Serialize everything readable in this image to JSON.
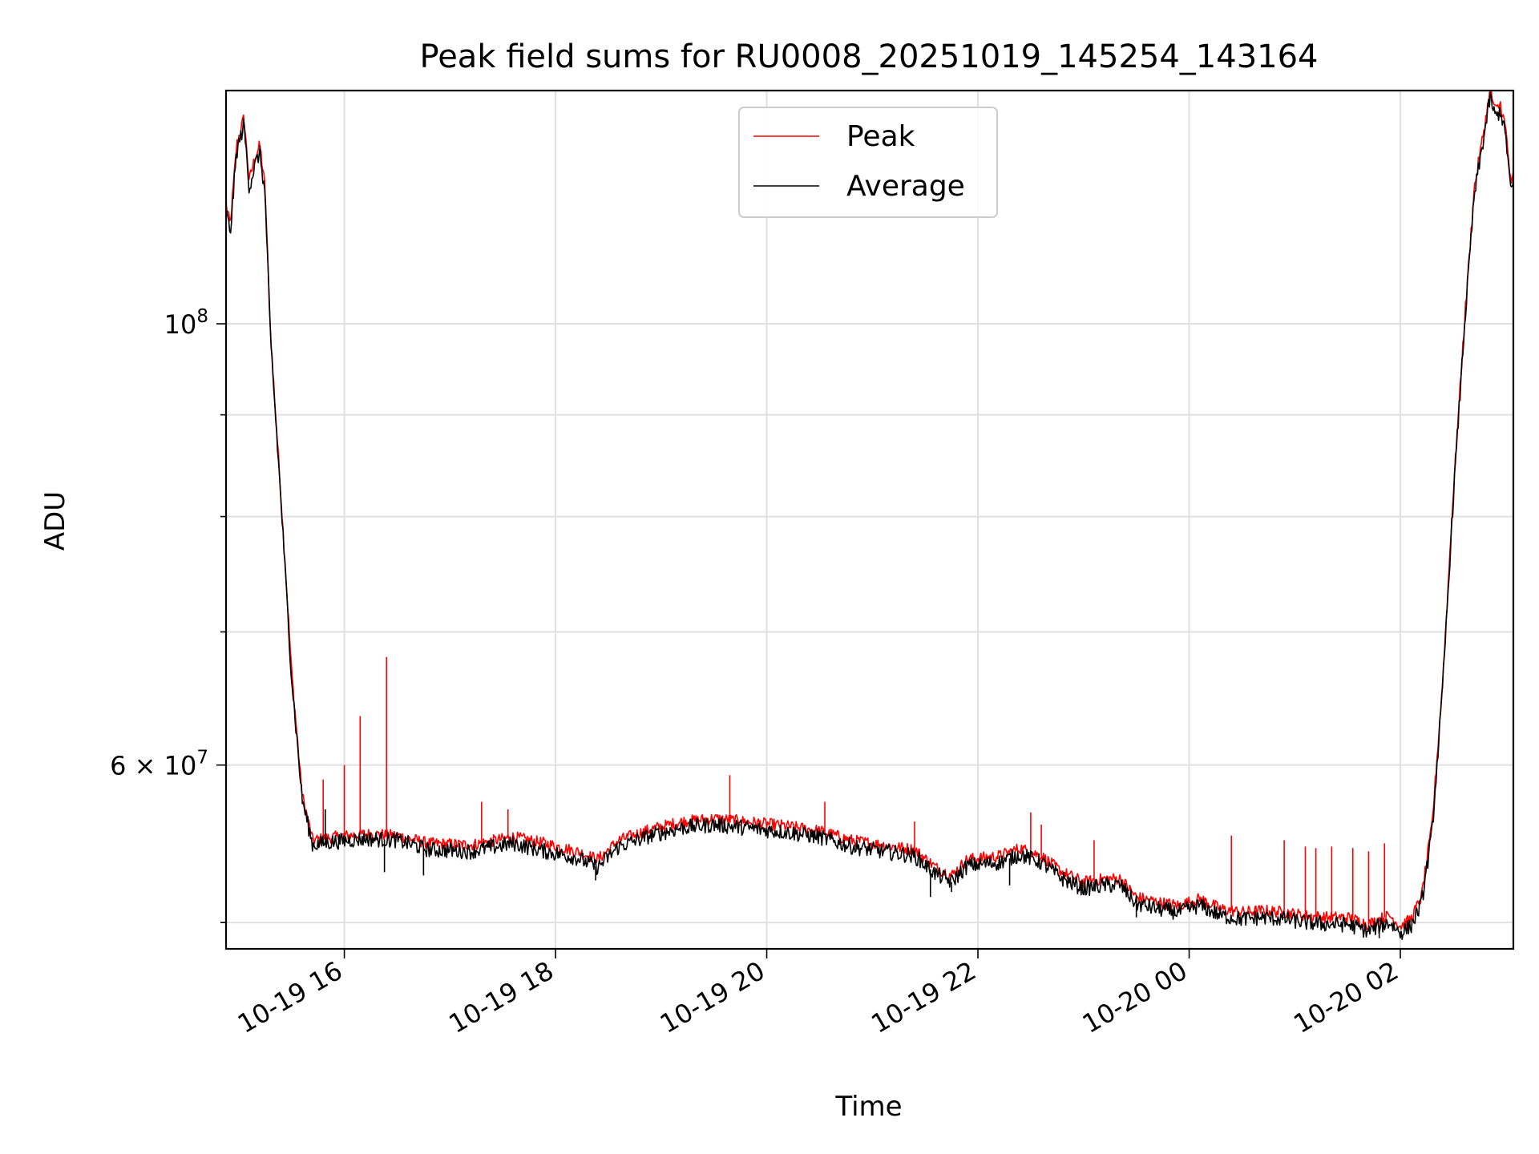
{
  "chart_data": {
    "type": "line",
    "title": "Peak field sums for RU0008_20251019_145254_143164",
    "xlabel": "Time",
    "ylabel": "ADU",
    "y_scale": "log",
    "grid": true,
    "legend_position": "upper-center",
    "xlim_hours": [
      14.88,
      27.07
    ],
    "ylim": [
      48500000,
      131000000
    ],
    "x_ticks": [
      {
        "hour": 16,
        "label": "10-19 16"
      },
      {
        "hour": 18,
        "label": "10-19 18"
      },
      {
        "hour": 20,
        "label": "10-19 20"
      },
      {
        "hour": 22,
        "label": "10-19 22"
      },
      {
        "hour": 24,
        "label": "10-20 00"
      },
      {
        "hour": 26,
        "label": "10-20 02"
      }
    ],
    "y_major_ticks": [
      {
        "value": 100000000,
        "base": "10",
        "exp": "8"
      },
      {
        "value": 60000000,
        "base": "6 × 10",
        "exp": "7"
      }
    ],
    "y_minor_ticks": [
      50000000,
      70000000,
      80000000,
      90000000
    ],
    "series": [
      {
        "name": "Peak",
        "color": "#ff0000",
        "hours": [
          14.88,
          14.92,
          14.98,
          15.05,
          15.1,
          15.15,
          15.2,
          15.25,
          15.3,
          15.4,
          15.5,
          15.6,
          15.7,
          15.9,
          16.2,
          16.5,
          16.8,
          17.2,
          17.6,
          17.9,
          18.2,
          18.4,
          18.6,
          18.9,
          19.2,
          19.5,
          19.8,
          20.2,
          20.5,
          20.8,
          21.1,
          21.4,
          21.6,
          21.75,
          21.9,
          22.2,
          22.4,
          22.6,
          22.8,
          23.0,
          23.2,
          23.35,
          23.5,
          23.7,
          23.9,
          24.1,
          24.3,
          24.5,
          24.7,
          24.9,
          25.1,
          25.3,
          25.5,
          25.7,
          25.8,
          25.9,
          26.0,
          26.1,
          26.2,
          26.3,
          26.4,
          26.5,
          26.6,
          26.7,
          26.8,
          26.85,
          26.9,
          26.95,
          27.0,
          27.05,
          27.07
        ],
        "values": [
          115000000,
          112000000,
          123000000,
          127000000,
          118000000,
          121000000,
          123000000,
          117000000,
          99000000,
          82000000,
          67000000,
          58000000,
          55000000,
          55200000,
          55400000,
          55300000,
          54800000,
          54700000,
          55200000,
          54800000,
          54300000,
          53800000,
          55000000,
          55700000,
          56200000,
          56400000,
          56200000,
          55900000,
          55600000,
          55000000,
          54700000,
          54400000,
          53300000,
          52800000,
          53800000,
          54000000,
          54500000,
          54000000,
          53000000,
          52400000,
          52600000,
          52600000,
          51500000,
          51200000,
          51000000,
          51400000,
          50800000,
          50600000,
          50700000,
          50600000,
          50400000,
          50300000,
          50300000,
          49900000,
          50200000,
          50400000,
          49800000,
          50200000,
          51500000,
          56000000,
          66000000,
          82000000,
          99000000,
          117000000,
          126000000,
          131000000,
          128000000,
          129000000,
          125000000,
          117000000,
          119000000
        ]
      },
      {
        "name": "Average",
        "color": "#000000",
        "hours": [
          14.88,
          14.92,
          14.98,
          15.05,
          15.1,
          15.15,
          15.2,
          15.25,
          15.3,
          15.4,
          15.5,
          15.6,
          15.7,
          15.9,
          16.2,
          16.5,
          16.8,
          17.2,
          17.6,
          17.9,
          18.2,
          18.4,
          18.6,
          18.9,
          19.2,
          19.5,
          19.8,
          20.2,
          20.5,
          20.8,
          21.1,
          21.4,
          21.6,
          21.75,
          21.9,
          22.2,
          22.4,
          22.6,
          22.8,
          23.0,
          23.2,
          23.35,
          23.5,
          23.7,
          23.9,
          24.1,
          24.3,
          24.5,
          24.7,
          24.9,
          25.1,
          25.3,
          25.5,
          25.7,
          25.8,
          25.9,
          26.0,
          26.1,
          26.2,
          26.3,
          26.4,
          26.5,
          26.6,
          26.7,
          26.8,
          26.85,
          26.9,
          26.95,
          27.0,
          27.05,
          27.07
        ],
        "values": [
          114000000,
          111000000,
          122000000,
          126000000,
          117000000,
          120000000,
          122000000,
          116000000,
          98500000,
          81500000,
          66500000,
          57700000,
          54700000,
          54900000,
          55100000,
          55000000,
          54400000,
          54300000,
          54800000,
          54300000,
          53900000,
          53300000,
          54600000,
          55300000,
          55800000,
          56000000,
          55800000,
          55500000,
          55200000,
          54600000,
          54300000,
          54000000,
          52900000,
          52400000,
          53400000,
          53600000,
          54100000,
          53600000,
          52600000,
          52000000,
          52200000,
          52200000,
          51100000,
          50800000,
          50600000,
          51000000,
          50400000,
          50200000,
          50300000,
          50200000,
          50000000,
          49900000,
          49900000,
          49500000,
          49800000,
          50000000,
          49400000,
          49800000,
          51100000,
          55500000,
          65500000,
          81500000,
          98500000,
          116000000,
          125000000,
          130000000,
          127000000,
          128000000,
          124000000,
          116000000,
          118000000
        ]
      }
    ],
    "peak_spikes": [
      {
        "hour": 15.8,
        "value": 59000000
      },
      {
        "hour": 16.0,
        "value": 60000000
      },
      {
        "hour": 16.15,
        "value": 63500000
      },
      {
        "hour": 16.4,
        "value": 68000000
      },
      {
        "hour": 17.3,
        "value": 57500000
      },
      {
        "hour": 17.55,
        "value": 57000000
      },
      {
        "hour": 19.65,
        "value": 59300000
      },
      {
        "hour": 20.55,
        "value": 57500000
      },
      {
        "hour": 21.4,
        "value": 56200000
      },
      {
        "hour": 22.5,
        "value": 56800000
      },
      {
        "hour": 22.6,
        "value": 56000000
      },
      {
        "hour": 23.1,
        "value": 55000000
      },
      {
        "hour": 24.4,
        "value": 55300000
      },
      {
        "hour": 24.9,
        "value": 55000000
      },
      {
        "hour": 25.1,
        "value": 54600000
      },
      {
        "hour": 25.2,
        "value": 54500000
      },
      {
        "hour": 25.35,
        "value": 54600000
      },
      {
        "hour": 25.55,
        "value": 54500000
      },
      {
        "hour": 25.7,
        "value": 54300000
      },
      {
        "hour": 25.85,
        "value": 54800000
      }
    ],
    "average_dips": [
      {
        "hour": 15.82,
        "value": 57000000
      },
      {
        "hour": 16.38,
        "value": 53000000
      },
      {
        "hour": 16.75,
        "value": 52800000
      },
      {
        "hour": 18.38,
        "value": 52500000
      },
      {
        "hour": 21.55,
        "value": 51500000
      },
      {
        "hour": 21.75,
        "value": 51800000
      },
      {
        "hour": 22.3,
        "value": 52200000
      },
      {
        "hour": 23.5,
        "value": 50300000
      },
      {
        "hour": 25.8,
        "value": 49100000
      }
    ]
  }
}
